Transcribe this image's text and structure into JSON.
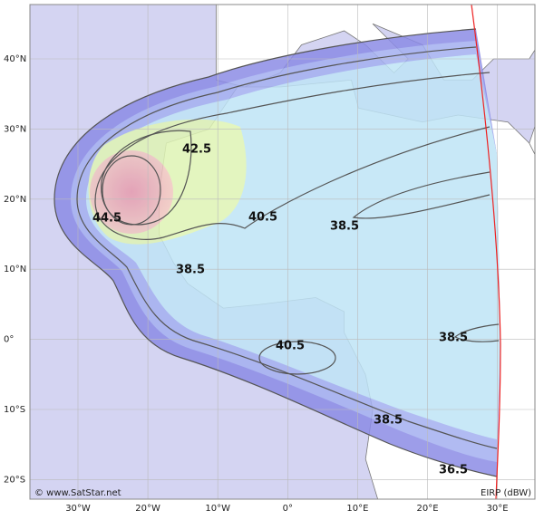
{
  "map": {
    "latitude_labels": [
      "40°N",
      "30°N",
      "20°N",
      "10°N",
      "0°",
      "10°S",
      "20°S"
    ],
    "longitude_labels": [
      "30°W",
      "20°W",
      "10°W",
      "0°",
      "10°E",
      "20°E",
      "30°E"
    ],
    "contour_labels": [
      "44.5",
      "42.5",
      "40.5",
      "38.5",
      "38.5",
      "40.5",
      "38.5",
      "38.5",
      "36.5"
    ],
    "credit": "© www.SatStar.net",
    "unit_label": "EIRP (dBW)"
  }
}
